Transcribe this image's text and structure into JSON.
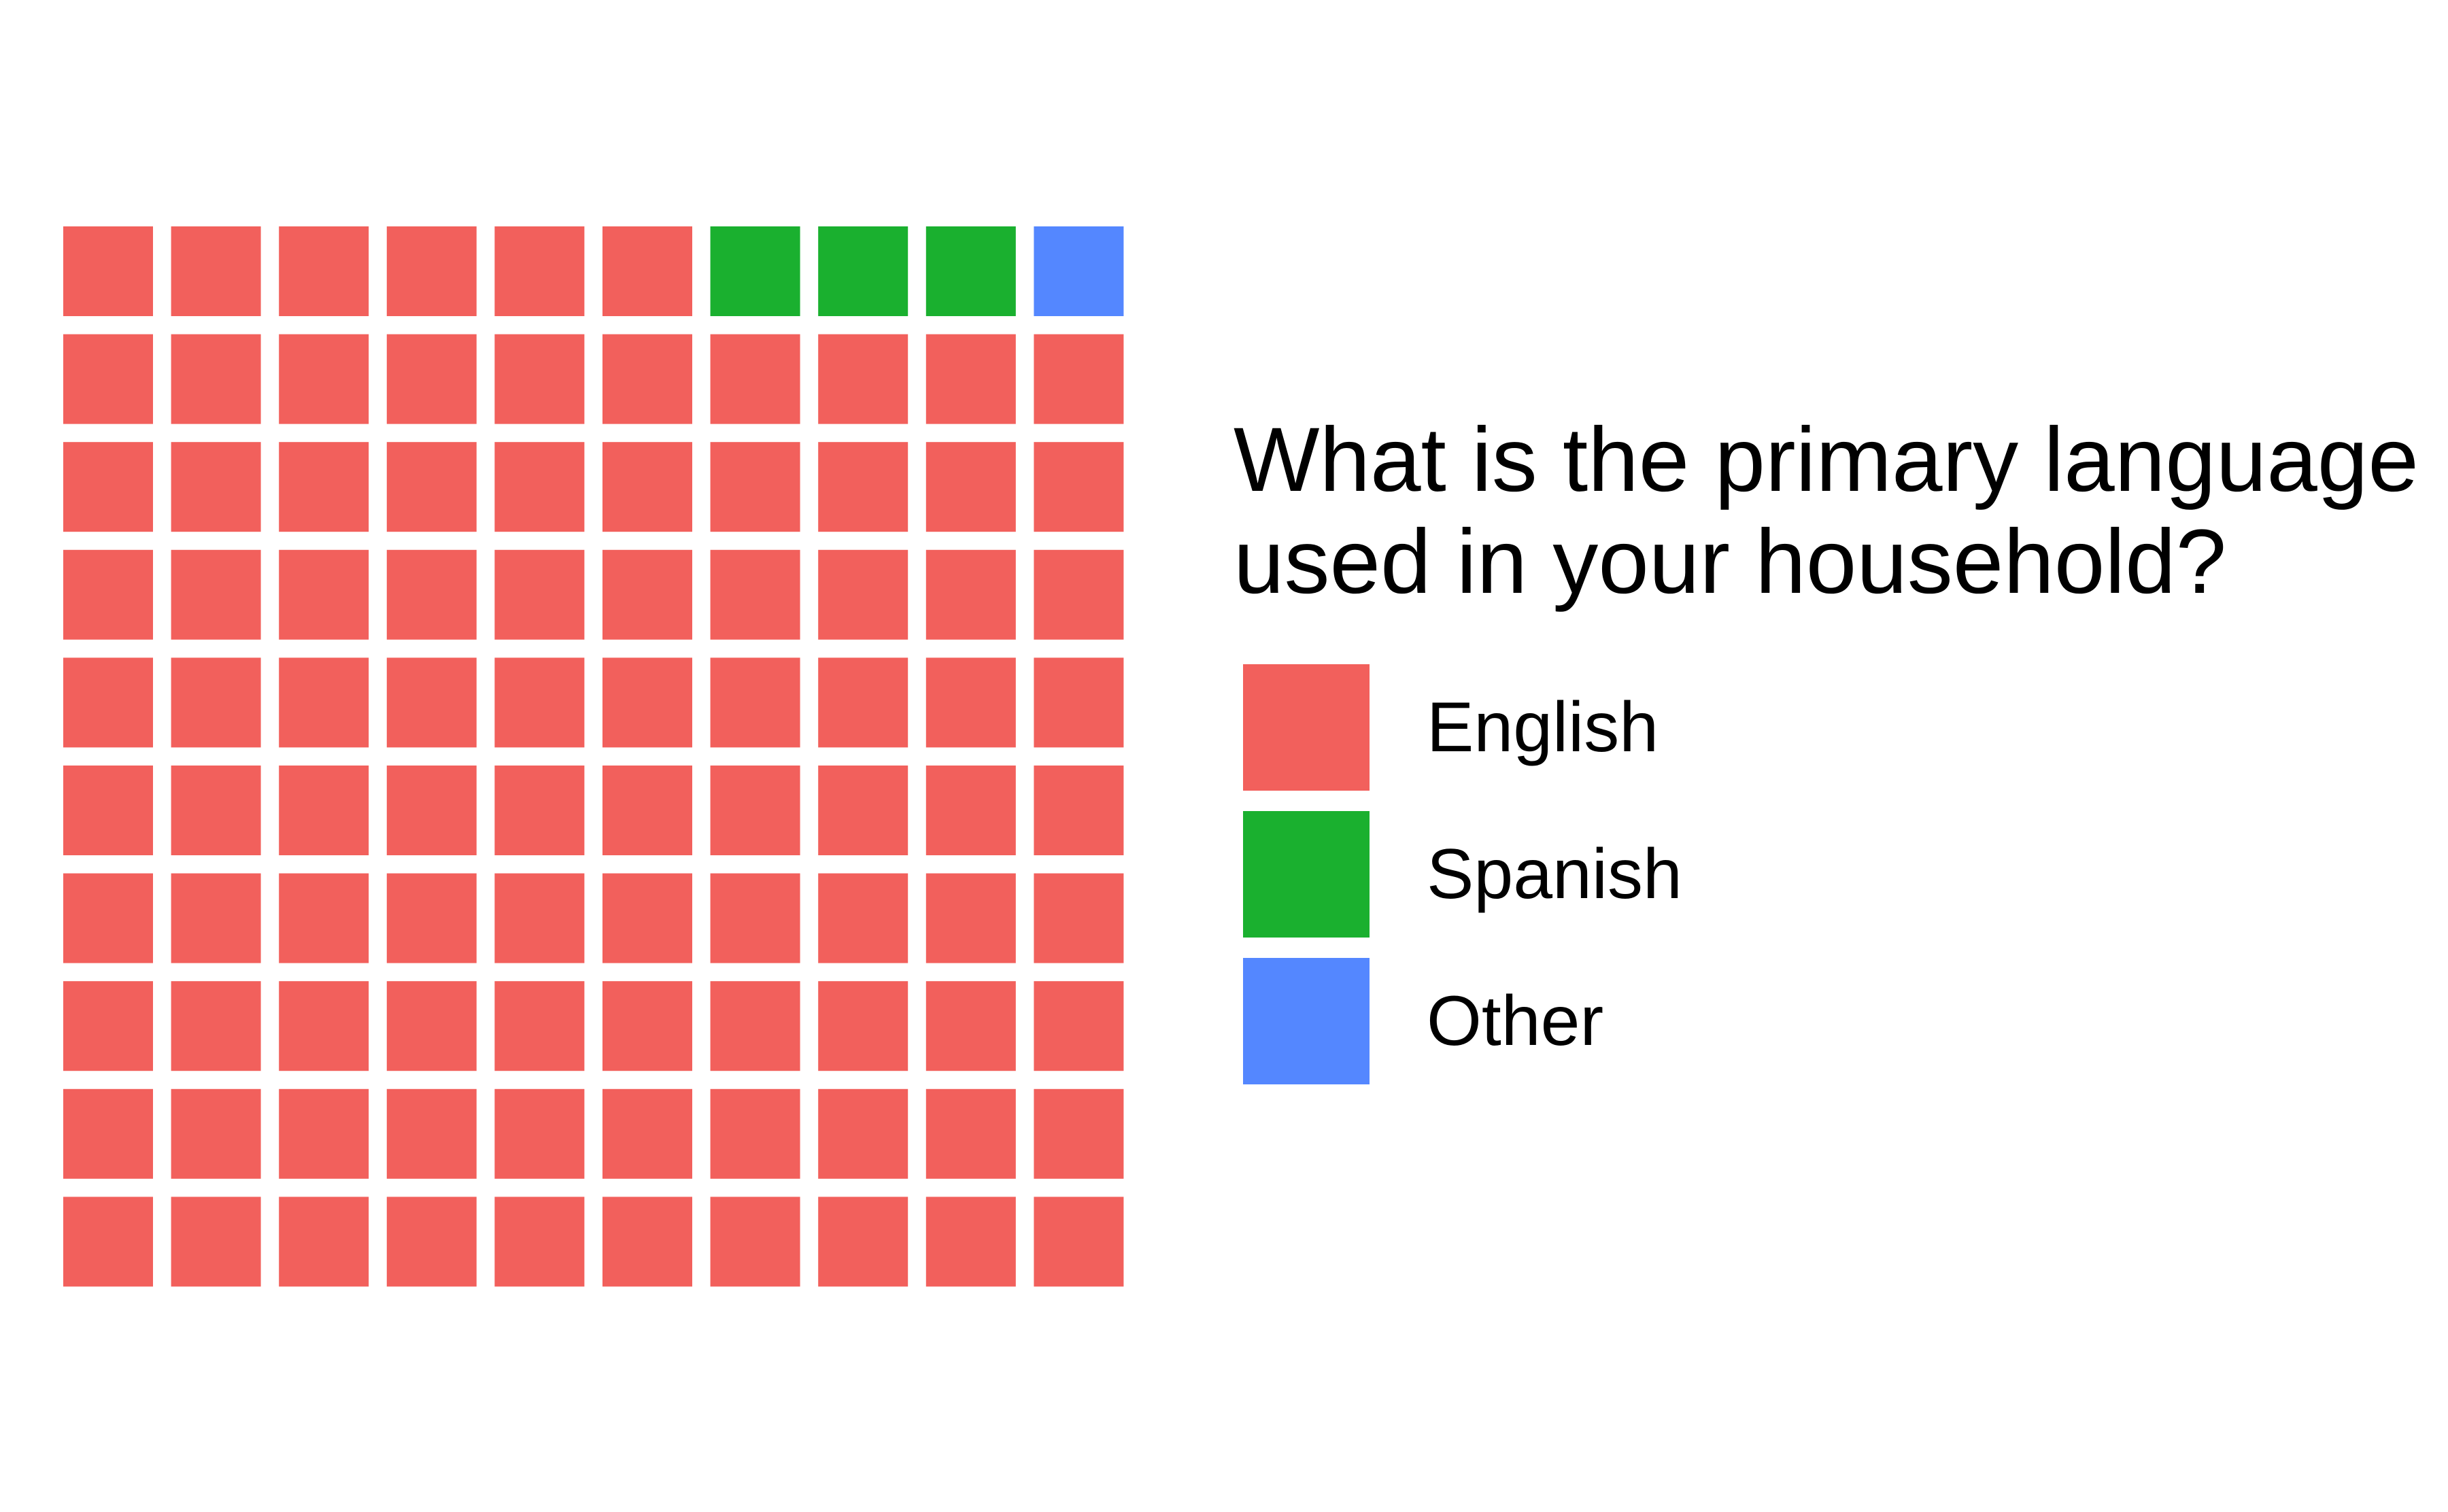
{
  "chart_data": {
    "type": "waffle",
    "title": "What is the primary language used in your household?",
    "title_lines": [
      "What is the primary language",
      "used in your household?"
    ],
    "grid": {
      "rows": 10,
      "cols": 10
    },
    "categories": [
      "English",
      "Spanish",
      "Other"
    ],
    "values": [
      96,
      3,
      1
    ],
    "colors": [
      "#F2605C",
      "#1AB02F",
      "#5487FF"
    ],
    "cell_order": "top row first (left to right) holds 6 English, 3 Spanish, 1 Other; remaining rows all English",
    "legend": {
      "position": "right",
      "title": "What is the primary language used in your household?",
      "items": [
        {
          "label": "English",
          "color": "#F2605C"
        },
        {
          "label": "Spanish",
          "color": "#1AB02F"
        },
        {
          "label": "Other",
          "color": "#5487FF"
        }
      ]
    }
  }
}
